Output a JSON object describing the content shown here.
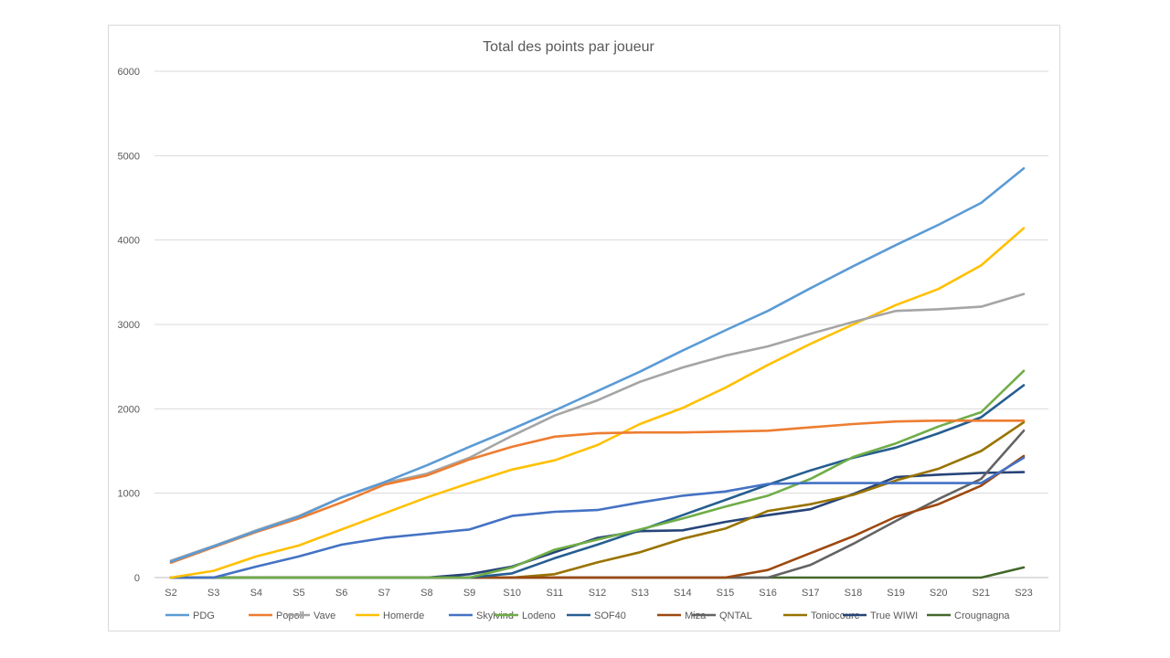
{
  "chart_data": {
    "type": "line",
    "title": "Total des points par joueur",
    "xlabel": "",
    "ylabel": "",
    "categories": [
      "S2",
      "S3",
      "S4",
      "S5",
      "S6",
      "S7",
      "S8",
      "S9",
      "S10",
      "S11",
      "S12",
      "S13",
      "S14",
      "S15",
      "S16",
      "S17",
      "S18",
      "S19",
      "S20",
      "S21",
      "S23"
    ],
    "ylim": [
      0,
      6000
    ],
    "yticks": [
      0,
      1000,
      2000,
      3000,
      4000,
      5000,
      6000
    ],
    "grid": "horizontal",
    "legend_position": "bottom",
    "series": [
      {
        "name": "PDG",
        "color": "#5b9bd5",
        "values": [
          190,
          370,
          550,
          720,
          950,
          1130,
          1330,
          1550,
          1760,
          1980,
          2210,
          2440,
          2690,
          2930,
          3160,
          3430,
          3690,
          3940,
          4180,
          4440,
          4850
        ]
      },
      {
        "name": "Popoll",
        "color": "#ed7d31",
        "values": [
          175,
          360,
          540,
          700,
          890,
          1100,
          1210,
          1400,
          1550,
          1670,
          1710,
          1720,
          1720,
          1730,
          1740,
          1780,
          1820,
          1850,
          1860,
          1860,
          1860
        ]
      },
      {
        "name": "Vave",
        "color": "#a5a5a5",
        "values": [
          200,
          375,
          560,
          730,
          950,
          1120,
          1230,
          1420,
          1680,
          1920,
          2100,
          2320,
          2490,
          2630,
          2740,
          2890,
          3030,
          3160,
          3180,
          3210,
          3360
        ]
      },
      {
        "name": "Homerde",
        "color": "#ffc000",
        "values": [
          0,
          80,
          250,
          380,
          570,
          760,
          950,
          1120,
          1280,
          1390,
          1570,
          1820,
          2010,
          2250,
          2520,
          2770,
          3000,
          3230,
          3420,
          3700,
          4140
        ]
      },
      {
        "name": "Skylvind",
        "color": "#4472c4",
        "values": [
          0,
          0,
          130,
          250,
          390,
          470,
          520,
          570,
          730,
          780,
          800,
          890,
          970,
          1020,
          1110,
          1120,
          1120,
          1120,
          1120,
          1120,
          1420
        ]
      },
      {
        "name": "Lodeno",
        "color": "#70ad47",
        "values": [
          0,
          0,
          0,
          0,
          0,
          0,
          0,
          0,
          120,
          330,
          450,
          570,
          700,
          840,
          970,
          1170,
          1430,
          1590,
          1790,
          1960,
          2450
        ]
      },
      {
        "name": "SOF40",
        "color": "#255e91",
        "values": [
          0,
          0,
          0,
          0,
          0,
          0,
          0,
          0,
          50,
          230,
          390,
          560,
          740,
          920,
          1100,
          1270,
          1420,
          1540,
          1710,
          1900,
          2280
        ]
      },
      {
        "name": "Miza",
        "color": "#9e480e",
        "values": [
          0,
          0,
          0,
          0,
          0,
          0,
          0,
          0,
          0,
          0,
          0,
          0,
          0,
          0,
          90,
          290,
          490,
          720,
          870,
          1090,
          1440
        ]
      },
      {
        "name": "QNTAL",
        "color": "#636363",
        "values": [
          0,
          0,
          0,
          0,
          0,
          0,
          0,
          0,
          0,
          0,
          0,
          0,
          0,
          0,
          0,
          150,
          400,
          670,
          930,
          1170,
          1740
        ]
      },
      {
        "name": "Toniocourc",
        "color": "#997300",
        "values": [
          0,
          0,
          0,
          0,
          0,
          0,
          0,
          0,
          0,
          40,
          180,
          300,
          460,
          580,
          790,
          870,
          980,
          1150,
          1290,
          1500,
          1840
        ]
      },
      {
        "name": "True WIWI",
        "color": "#264478",
        "values": [
          0,
          0,
          0,
          0,
          0,
          0,
          0,
          40,
          130,
          300,
          470,
          550,
          560,
          660,
          740,
          810,
          990,
          1190,
          1220,
          1240,
          1250
        ]
      },
      {
        "name": "Crougnagna",
        "color": "#43682b",
        "values": [
          0,
          0,
          0,
          0,
          0,
          0,
          0,
          0,
          0,
          0,
          0,
          0,
          0,
          0,
          0,
          0,
          0,
          0,
          0,
          0,
          120
        ]
      }
    ]
  }
}
